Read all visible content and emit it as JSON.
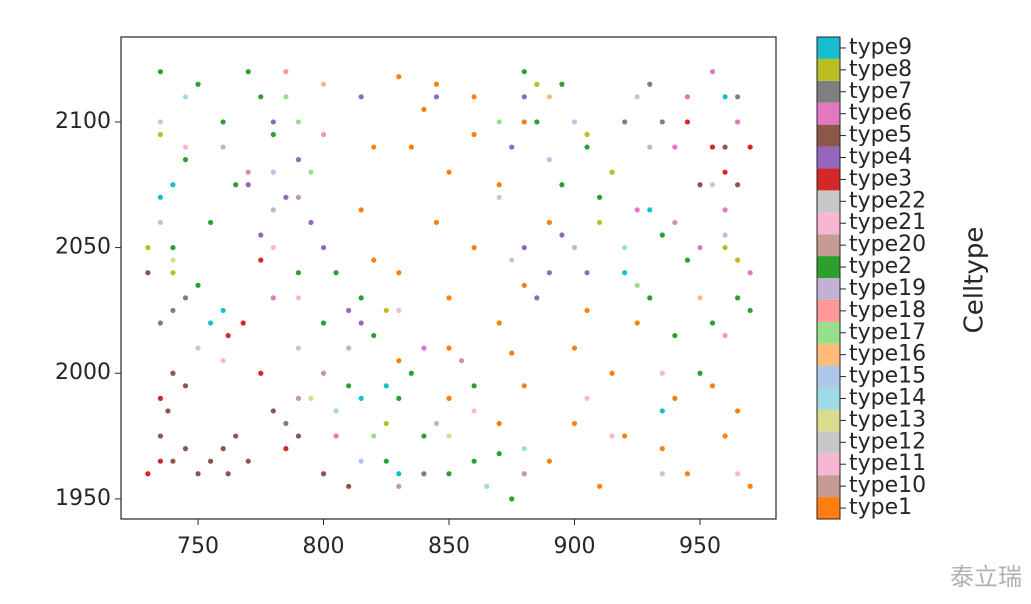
{
  "chart_data": {
    "type": "scatter",
    "xlim": [
      719.3,
      980.3
    ],
    "ylim": [
      1942.0,
      2133.8
    ],
    "xticks": [
      750,
      800,
      850,
      900,
      950
    ],
    "yticks": [
      1950,
      2000,
      2050,
      2100
    ],
    "colorbar_label": "Celltype",
    "watermark": "泰立瑞",
    "series": [
      {
        "name": "type1",
        "color": "#ff7f0e",
        "x": [
          830,
          845,
          860,
          880,
          835,
          850,
          870,
          845,
          860,
          830,
          850,
          870,
          880,
          900,
          915,
          830,
          850,
          880,
          900,
          920,
          940,
          960,
          945,
          970,
          910,
          890,
          870,
          850,
          815,
          820,
          905,
          925,
          955,
          965,
          860,
          890,
          875,
          935,
          820,
          840
        ],
        "y": [
          2118,
          2115,
          2110,
          2100,
          2090,
          2080,
          2075,
          2060,
          2050,
          2040,
          2030,
          2020,
          2035,
          2010,
          2000,
          2005,
          2010,
          1995,
          1980,
          1975,
          1990,
          1975,
          1960,
          1955,
          1955,
          1965,
          1980,
          1990,
          2065,
          2045,
          2025,
          2020,
          1995,
          1985,
          2095,
          2060,
          2008,
          1970,
          2090,
          2105
        ]
      },
      {
        "name": "type10",
        "color": "#c49c94",
        "x": [
          770,
          800,
          830,
          880,
          940,
          790
        ],
        "y": [
          2080,
          2000,
          1955,
          1960,
          2060,
          1990
        ]
      },
      {
        "name": "type11",
        "color": "#f7b6d2",
        "x": [
          745,
          780,
          860,
          905,
          935,
          965,
          790
        ],
        "y": [
          2090,
          2050,
          1985,
          1990,
          2000,
          1960,
          2030
        ]
      },
      {
        "name": "type12",
        "color": "#c7c7c7",
        "x": [
          735,
          790,
          870,
          925,
          955
        ],
        "y": [
          2100,
          2010,
          2070,
          2110,
          2075
        ]
      },
      {
        "name": "type13",
        "color": "#dbdb8d",
        "x": [
          740,
          795,
          850,
          915
        ],
        "y": [
          2045,
          1990,
          1975,
          2080
        ]
      },
      {
        "name": "type14",
        "color": "#9edae5",
        "x": [
          745,
          805,
          865,
          920,
          880
        ],
        "y": [
          2110,
          1985,
          1955,
          2050,
          1970
        ]
      },
      {
        "name": "type15",
        "color": "#aec7e8",
        "x": [
          735,
          780,
          815,
          900,
          960,
          890
        ],
        "y": [
          2060,
          2080,
          1965,
          2100,
          2055,
          2085
        ]
      },
      {
        "name": "type16",
        "color": "#ffbb78",
        "x": [
          800,
          890,
          950
        ],
        "y": [
          2115,
          2110,
          2030
        ]
      },
      {
        "name": "type17",
        "color": "#98df8a",
        "x": [
          790,
          795,
          785,
          820,
          870,
          925
        ],
        "y": [
          2100,
          2080,
          2110,
          1975,
          2100,
          2035
        ]
      },
      {
        "name": "type18",
        "color": "#ff9896",
        "x": [
          785,
          800,
          960
        ],
        "y": [
          2120,
          2095,
          2015
        ]
      },
      {
        "name": "type19",
        "color": "#c5b0d5",
        "x": [
          780,
          760,
          810,
          845,
          900,
          930
        ],
        "y": [
          2065,
          2090,
          2010,
          1980,
          2050,
          2090
        ]
      },
      {
        "name": "type2",
        "color": "#2ca02c",
        "x": [
          735,
          750,
          760,
          745,
          765,
          755,
          740,
          775,
          780,
          770,
          805,
          815,
          800,
          820,
          830,
          840,
          825,
          850,
          810,
          835,
          870,
          875,
          860,
          885,
          895,
          905,
          880,
          910,
          935,
          945,
          930,
          955,
          965,
          950,
          940,
          970,
          895,
          750,
          790,
          860
        ],
        "y": [
          2120,
          2115,
          2100,
          2085,
          2075,
          2060,
          2050,
          2110,
          2095,
          2120,
          2040,
          2030,
          2020,
          2015,
          1990,
          1975,
          1965,
          1960,
          1995,
          2000,
          1968,
          1950,
          1965,
          2100,
          2115,
          2090,
          2120,
          2070,
          2055,
          2045,
          2030,
          2020,
          2030,
          2000,
          2015,
          2025,
          2075,
          2035,
          2040,
          1995
        ]
      },
      {
        "name": "type20",
        "color": "#c49c94",
        "x": [
          790,
          855,
          945
        ],
        "y": [
          2070,
          2005,
          2110
        ]
      },
      {
        "name": "type21",
        "color": "#f7b6d2",
        "x": [
          760,
          830,
          915
        ],
        "y": [
          2005,
          2025,
          1975
        ]
      },
      {
        "name": "type22",
        "color": "#c7c7c7",
        "x": [
          750,
          875,
          935
        ],
        "y": [
          2010,
          2045,
          1960
        ]
      },
      {
        "name": "type3",
        "color": "#d62728",
        "x": [
          730,
          735,
          735,
          762,
          768,
          775,
          785,
          960,
          955,
          945,
          970,
          775
        ],
        "y": [
          1960,
          1965,
          1990,
          2015,
          2020,
          2000,
          1970,
          2080,
          2090,
          2100,
          2090,
          2045
        ]
      },
      {
        "name": "type4",
        "color": "#9467bd",
        "x": [
          775,
          785,
          795,
          790,
          780,
          800,
          810,
          815,
          880,
          890,
          895,
          885,
          875,
          880,
          905,
          845,
          770,
          815
        ],
        "y": [
          2055,
          2070,
          2060,
          2085,
          2100,
          2050,
          2025,
          2020,
          2050,
          2040,
          2055,
          2030,
          2090,
          2110,
          2040,
          2110,
          2075,
          2110
        ]
      },
      {
        "name": "type5",
        "color": "#8c564b",
        "x": [
          755,
          760,
          765,
          750,
          762,
          770,
          740,
          735,
          745,
          738,
          780,
          790,
          950,
          960,
          965,
          730,
          745,
          740,
          800,
          810
        ],
        "y": [
          1965,
          1970,
          1975,
          1960,
          1960,
          1965,
          1965,
          1975,
          1970,
          1985,
          1985,
          1975,
          2075,
          2090,
          2075,
          2040,
          1995,
          2000,
          1960,
          1955
        ]
      },
      {
        "name": "type6",
        "color": "#e377c2",
        "x": [
          945,
          955,
          965,
          960,
          940,
          950,
          970,
          925,
          805,
          780,
          840
        ],
        "y": [
          2110,
          2120,
          2100,
          2065,
          2090,
          2050,
          2040,
          2065,
          1975,
          2030,
          2010
        ]
      },
      {
        "name": "type7",
        "color": "#7f7f7f",
        "x": [
          740,
          745,
          735,
          920,
          930,
          935,
          785,
          840,
          965
        ],
        "y": [
          2025,
          2030,
          2020,
          2100,
          2115,
          2100,
          1980,
          1960,
          2110
        ]
      },
      {
        "name": "type8",
        "color": "#bcbd22",
        "x": [
          730,
          740,
          735,
          905,
          915,
          910,
          960,
          965,
          825,
          825,
          885
        ],
        "y": [
          2050,
          2040,
          2095,
          2095,
          2080,
          2060,
          2050,
          2045,
          1980,
          2025,
          2115
        ]
      },
      {
        "name": "type9",
        "color": "#17becf",
        "x": [
          735,
          740,
          760,
          755,
          825,
          830,
          930,
          920,
          960,
          935,
          815
        ],
        "y": [
          2070,
          2075,
          2025,
          2020,
          1995,
          1960,
          2065,
          2040,
          2110,
          1985,
          1990
        ]
      }
    ]
  }
}
